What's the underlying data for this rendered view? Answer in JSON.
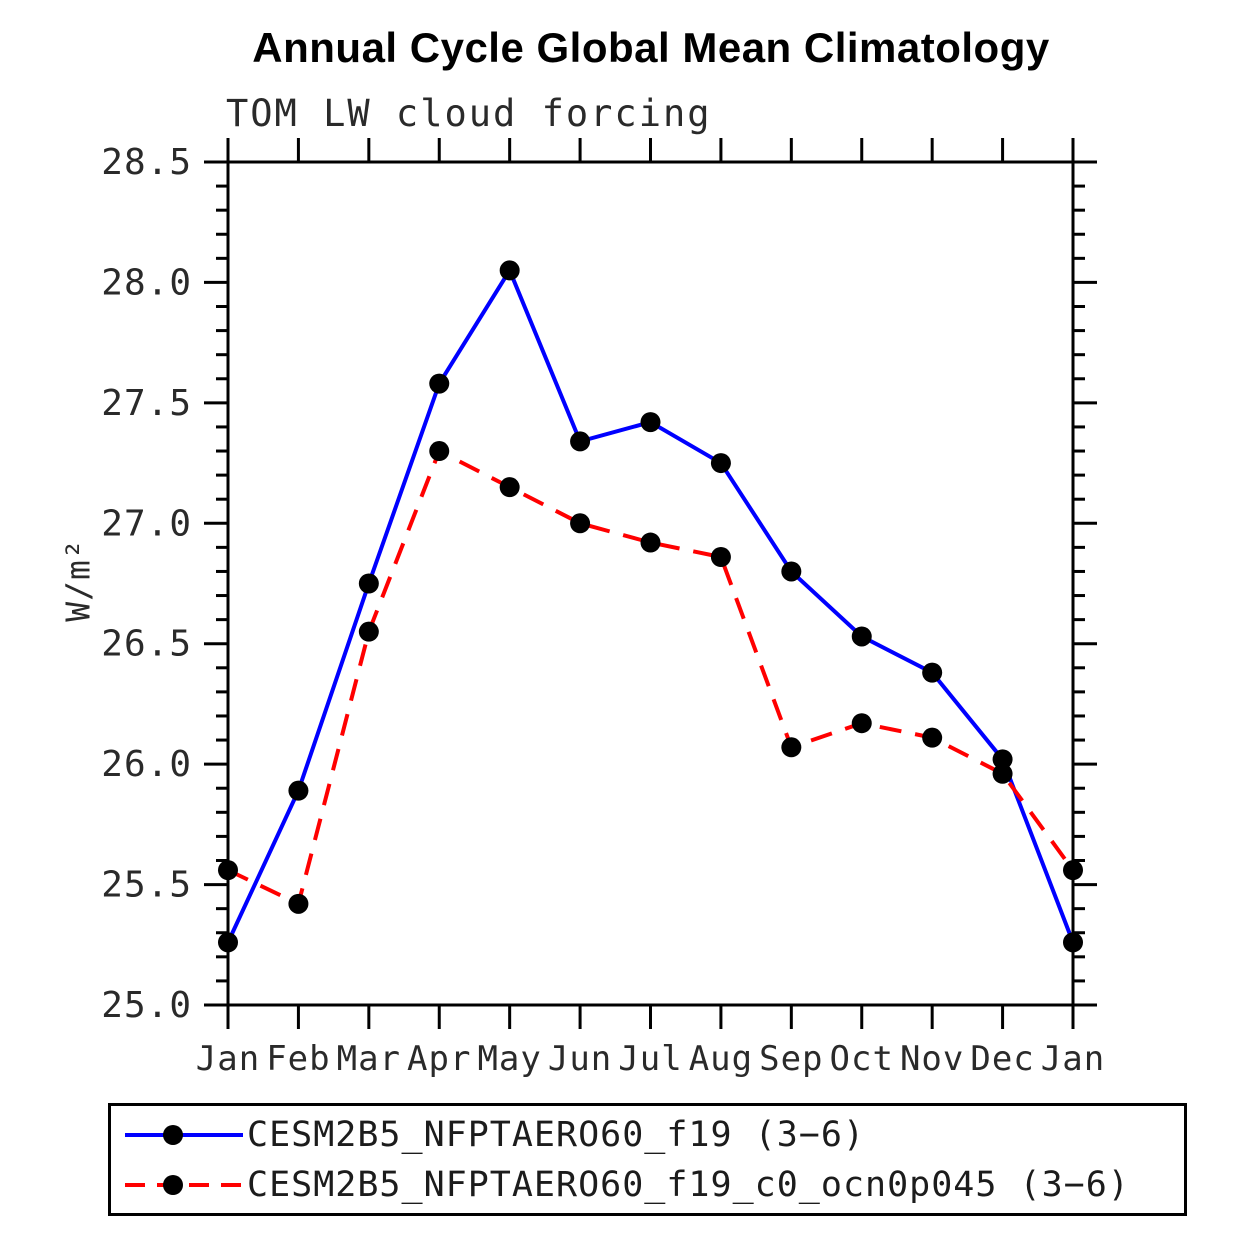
{
  "chart_data": {
    "type": "line",
    "title": "Annual Cycle Global Mean Climatology",
    "subtitle": "TOM LW cloud forcing",
    "ylabel": "W/m²",
    "xlabel": "",
    "categories": [
      "Jan",
      "Feb",
      "Mar",
      "Apr",
      "May",
      "Jun",
      "Jul",
      "Aug",
      "Sep",
      "Oct",
      "Nov",
      "Dec",
      "Jan"
    ],
    "ylim": [
      25.0,
      28.5
    ],
    "ytick_major_step": 0.5,
    "ytick_minor_step": 0.1,
    "grid": false,
    "legend_position": "bottom-left-box",
    "axis_color": "#000000",
    "series": [
      {
        "name": "CESM2B5_NFPTAERO60_f19 (3−6)",
        "color": "#0000ff",
        "line_style": "solid",
        "marker": "filled-circle",
        "marker_color": "#000000",
        "values": [
          25.26,
          25.89,
          26.75,
          27.58,
          28.05,
          27.34,
          27.42,
          27.25,
          26.8,
          26.53,
          26.38,
          26.02,
          25.26
        ]
      },
      {
        "name": "CESM2B5_NFPTAERO60_f19_c0_ocn0p045 (3−6)",
        "color": "#ff0000",
        "line_style": "dashed",
        "marker": "filled-circle",
        "marker_color": "#000000",
        "values": [
          25.56,
          25.42,
          26.55,
          27.3,
          27.15,
          27.0,
          26.92,
          26.86,
          26.07,
          26.17,
          26.11,
          25.96,
          25.56
        ]
      }
    ]
  }
}
